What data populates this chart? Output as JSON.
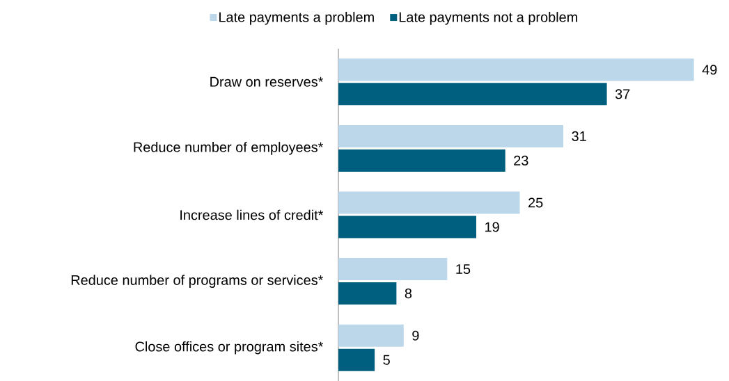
{
  "chart_data": {
    "type": "bar",
    "orientation": "horizontal",
    "categories": [
      "Draw on reserves*",
      "Reduce number of employees*",
      "Increase lines of credit*",
      "Reduce number of programs or services*",
      "Close offices or program sites*"
    ],
    "series": [
      {
        "name": "Late payments a problem",
        "color": "#bdd7ea",
        "values": [
          49,
          31,
          25,
          15,
          9
        ]
      },
      {
        "name": "Late payments not a problem",
        "color": "#005f7f",
        "values": [
          37,
          23,
          19,
          8,
          5
        ]
      }
    ],
    "data_labels": true,
    "legend": "top"
  }
}
